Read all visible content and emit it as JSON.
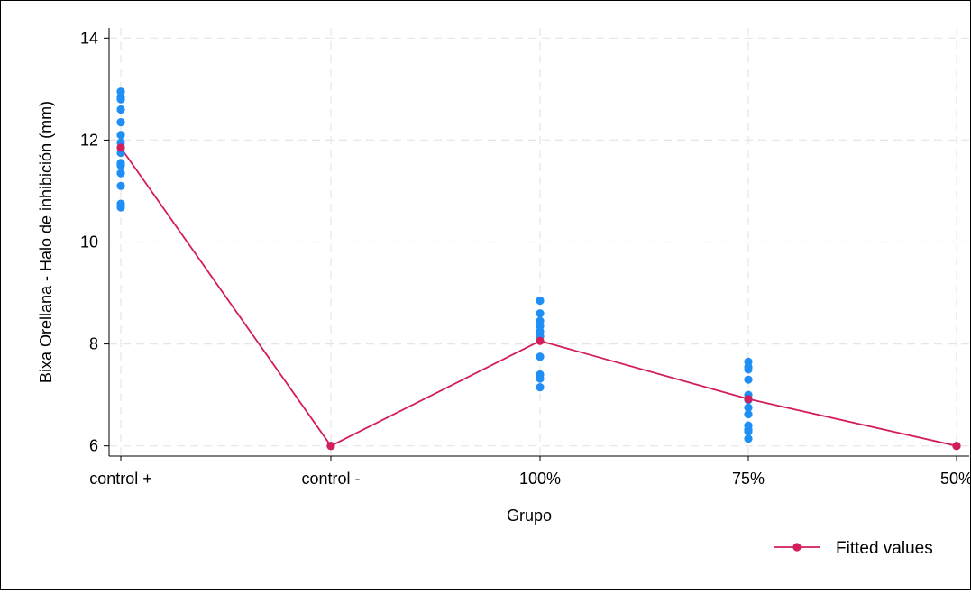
{
  "chart_data": {
    "type": "scatter",
    "title": "",
    "xlabel": "Grupo",
    "ylabel": "Bixa Orellana - Halo de inhibición (mm)",
    "categories": [
      "control +",
      "control -",
      "100%",
      "75%",
      "50%"
    ],
    "ylim": [
      5.8,
      14.2
    ],
    "yticks": [
      6,
      8,
      10,
      12,
      14
    ],
    "grid": true,
    "legend_position": "bottom-right",
    "series": [
      {
        "type": "scatter",
        "color": "#1f8ff5",
        "points": [
          {
            "x": "control +",
            "y": 12.95
          },
          {
            "x": "control +",
            "y": 12.85
          },
          {
            "x": "control +",
            "y": 12.8
          },
          {
            "x": "control +",
            "y": 12.6
          },
          {
            "x": "control +",
            "y": 12.35
          },
          {
            "x": "control +",
            "y": 12.1
          },
          {
            "x": "control +",
            "y": 11.95
          },
          {
            "x": "control +",
            "y": 11.85
          },
          {
            "x": "control +",
            "y": 11.75
          },
          {
            "x": "control +",
            "y": 11.55
          },
          {
            "x": "control +",
            "y": 11.5
          },
          {
            "x": "control +",
            "y": 11.35
          },
          {
            "x": "control +",
            "y": 11.1
          },
          {
            "x": "control +",
            "y": 10.75
          },
          {
            "x": "control +",
            "y": 10.68
          },
          {
            "x": "control -",
            "y": 6.0
          },
          {
            "x": "100%",
            "y": 8.85
          },
          {
            "x": "100%",
            "y": 8.6
          },
          {
            "x": "100%",
            "y": 8.45
          },
          {
            "x": "100%",
            "y": 8.35
          },
          {
            "x": "100%",
            "y": 8.25
          },
          {
            "x": "100%",
            "y": 8.15
          },
          {
            "x": "100%",
            "y": 7.75
          },
          {
            "x": "100%",
            "y": 7.4
          },
          {
            "x": "100%",
            "y": 7.32
          },
          {
            "x": "100%",
            "y": 7.15
          },
          {
            "x": "75%",
            "y": 7.65
          },
          {
            "x": "75%",
            "y": 7.55
          },
          {
            "x": "75%",
            "y": 7.5
          },
          {
            "x": "75%",
            "y": 7.3
          },
          {
            "x": "75%",
            "y": 7.0
          },
          {
            "x": "75%",
            "y": 6.9
          },
          {
            "x": "75%",
            "y": 6.75
          },
          {
            "x": "75%",
            "y": 6.62
          },
          {
            "x": "75%",
            "y": 6.4
          },
          {
            "x": "75%",
            "y": 6.32
          },
          {
            "x": "75%",
            "y": 6.28
          },
          {
            "x": "75%",
            "y": 6.14
          },
          {
            "x": "50%",
            "y": 6.0
          }
        ]
      },
      {
        "name": "Fitted values",
        "type": "line",
        "color": "#d21e5a",
        "points": [
          {
            "x": "control +",
            "y": 11.85
          },
          {
            "x": "control -",
            "y": 6.0
          },
          {
            "x": "100%",
            "y": 8.06
          },
          {
            "x": "75%",
            "y": 6.92
          },
          {
            "x": "50%",
            "y": 6.0
          }
        ]
      }
    ]
  }
}
